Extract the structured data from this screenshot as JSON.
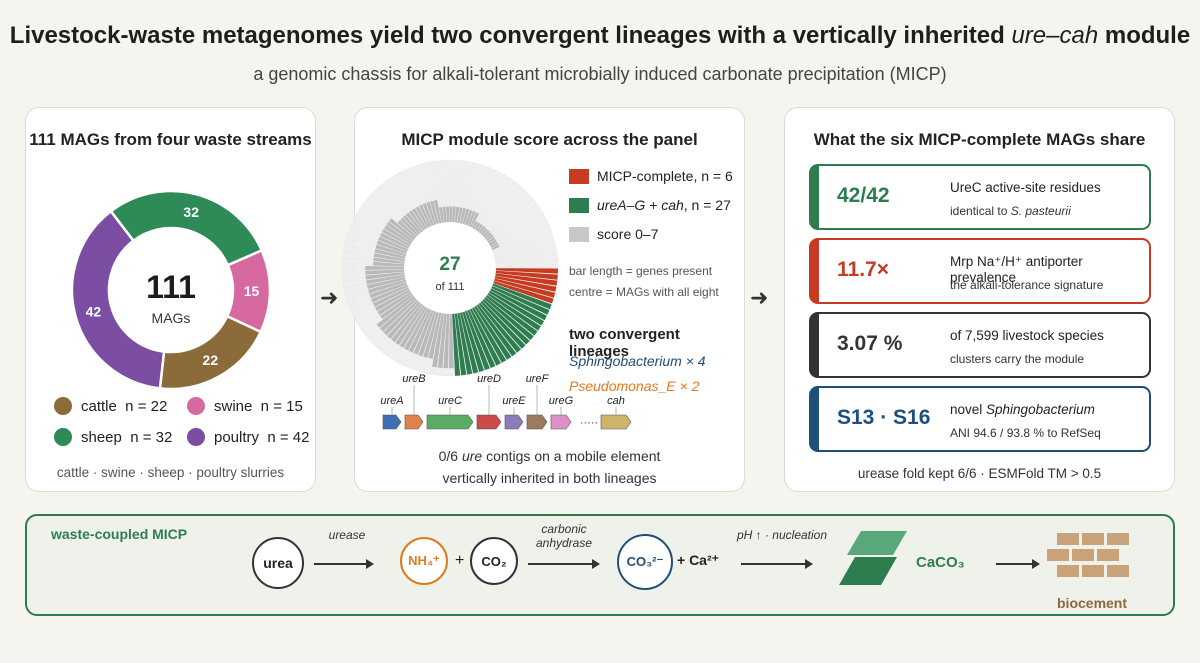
{
  "header": {
    "title_pre": "Livestock-waste metagenomes yield two convergent lineages with a vertically inherited ",
    "title_italic": "ure–cah",
    "title_post": " module",
    "subtitle": "a genomic chassis for alkali-tolerant microbially induced carbonate precipitation (MICP)"
  },
  "panel1": {
    "title": "111 MAGs from four waste streams",
    "center_value": "111",
    "center_label": "MAGs",
    "slices": [
      {
        "label": "cattle",
        "value": 22,
        "color": "#8c6b3a"
      },
      {
        "label": "swine",
        "value": 15,
        "color": "#d66aa0"
      },
      {
        "label": "sheep",
        "value": 32,
        "color": "#2e8b57"
      },
      {
        "label": "poultry",
        "value": 42,
        "color": "#7b4ea3"
      }
    ],
    "legend": [
      {
        "text": "cattle  n = 22",
        "color": "#8c6b3a"
      },
      {
        "text": "swine  n = 15",
        "color": "#d66aa0"
      },
      {
        "text": "sheep  n = 32",
        "color": "#2e8b57"
      },
      {
        "text": "poultry  n = 42",
        "color": "#7b4ea3"
      }
    ],
    "footer": "cattle · swine · sheep · poultry slurries"
  },
  "panel2": {
    "title": "MICP module score across the panel",
    "center_value": "27",
    "center_label": "of 111",
    "legend": [
      {
        "text": "MICP-complete, n = 6",
        "color": "#c63b22"
      },
      {
        "text_italic": "ureA–G + cah",
        "text": ", n = 27",
        "color": "#2e7d4f"
      },
      {
        "text": "score 0–7",
        "color": "#c8c8c8"
      }
    ],
    "note1": "bar length = genes present",
    "note2": "centre = MAGs with all eight",
    "lineage_heading": "two convergent lineages",
    "lineage1": "Sphingobacterium × 4",
    "lineage2": "Pseudomonas_E × 2",
    "lineage1_color": "#1f4e79",
    "lineage2_color": "#e07a1f",
    "genes": [
      {
        "name": "ureA",
        "color": "#3f6fb5"
      },
      {
        "name": "ureB",
        "color": "#e0824a"
      },
      {
        "name": "ureC",
        "color": "#5aab64"
      },
      {
        "name": "ureD",
        "color": "#cc4a4a"
      },
      {
        "name": "ureE",
        "color": "#8c7bb8"
      },
      {
        "name": "ureF",
        "color": "#9a7b5e"
      },
      {
        "name": "ureG",
        "color": "#e08fc9"
      },
      {
        "name": "cah",
        "color": "#cdb46a"
      }
    ],
    "gene_dots": "·····",
    "footer_pre": "0/6 ",
    "footer_italic": "ure",
    "footer_post": " contigs on a mobile element",
    "footer2": "vertically inherited in both lineages"
  },
  "panel3": {
    "title": "What the six MICP-complete MAGs share",
    "cards": [
      {
        "big": "42/42",
        "line1": "UreC active-site residues",
        "line2_pre": "identical to ",
        "line2_italic": "S. pasteurii",
        "line2_post": "",
        "color": "#2e7d4f"
      },
      {
        "big": "11.7×",
        "line1": "Mrp Na⁺/H⁺ antiporter prevalence",
        "line2_pre": "the alkali-tolerance signature",
        "line2_italic": "",
        "line2_post": "",
        "color": "#c63b22"
      },
      {
        "big": "3.07 %",
        "line1": "of 7,599 livestock species",
        "line2_pre": "clusters carry the module",
        "line2_italic": "",
        "line2_post": "",
        "color": "#333333"
      },
      {
        "big": "S13 · S16",
        "line1_pre": "novel ",
        "line1_italic": "Sphingobacterium",
        "line2_pre": "ANI 94.6 / 93.8 % to RefSeq",
        "line2_italic": "",
        "line2_post": "",
        "color": "#1f4e79"
      }
    ],
    "footer": "urease fold kept 6/6 · ESMFold TM > 0.5"
  },
  "bottom": {
    "title": "waste-coupled MICP",
    "urea": "urea",
    "urease": "urease",
    "nh4": "NH₄⁺",
    "plus": "+",
    "co2": "CO₂",
    "ca_label": "carbonic",
    "ca_label2": "anhydrase",
    "co3": "CO₃²⁻",
    "ca2": "+ Ca²⁺",
    "ph": "pH ↑ · nucleation",
    "caco3": "CaCO₃",
    "biocement": "biocement"
  }
}
